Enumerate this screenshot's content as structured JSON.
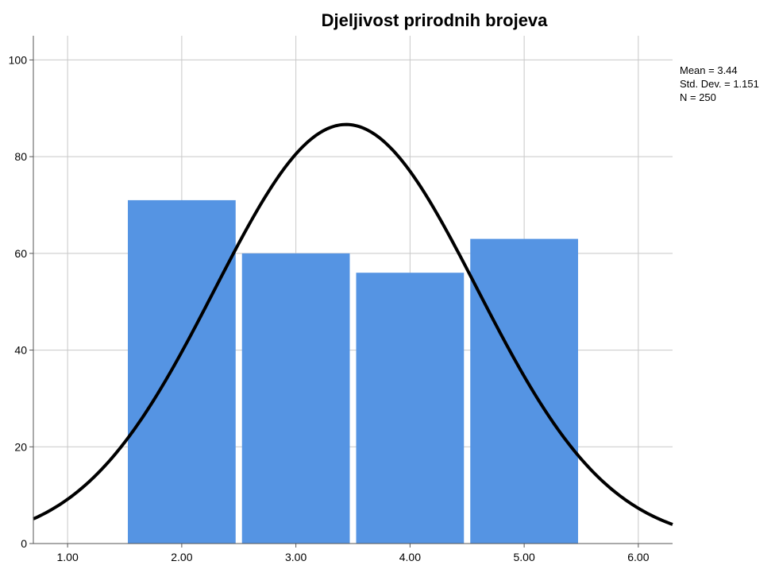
{
  "chart_data": {
    "type": "bar",
    "title": "Djeljivost prirodnih brojeva",
    "xlabel": "",
    "ylabel": "",
    "bin_width": 1,
    "x": [
      2,
      3,
      4,
      5
    ],
    "values": [
      71,
      60,
      56,
      63
    ],
    "xlim": [
      0.7,
      6.3
    ],
    "ylim": [
      0,
      105
    ],
    "x_ticks": [
      1,
      2,
      3,
      4,
      5,
      6
    ],
    "x_tick_labels": [
      "1.00",
      "2.00",
      "3.00",
      "4.00",
      "5.00",
      "6.00"
    ],
    "y_ticks": [
      0,
      20,
      40,
      60,
      80,
      100
    ],
    "y_tick_labels": [
      "0",
      "20",
      "40",
      "60",
      "80",
      "100"
    ],
    "grid": true,
    "bar_color": "#5594e3",
    "curve_color": "#000000",
    "normal_curve": {
      "mean": 3.44,
      "std_dev": 1.151,
      "n": 250
    },
    "stats_text": [
      "Mean = 3.44",
      "Std. Dev. = 1.151",
      "N = 250"
    ],
    "stats_placement": "top-right"
  }
}
